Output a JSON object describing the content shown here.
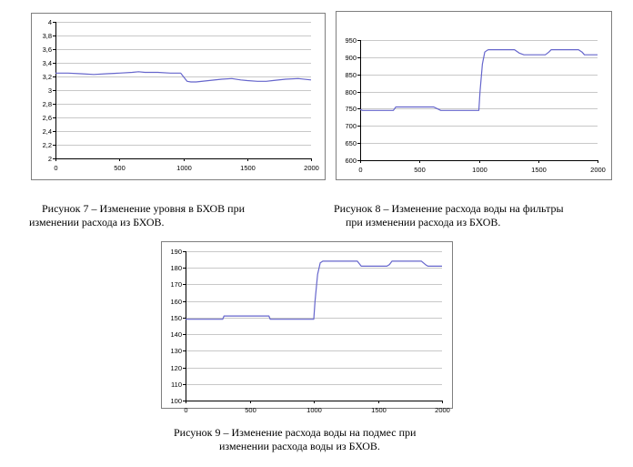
{
  "chart_data": [
    {
      "type": "line",
      "title": "",
      "xlabel": "",
      "ylabel": "",
      "xlim": [
        0,
        2000
      ],
      "ylim": [
        2,
        4
      ],
      "x_ticks": [
        "0",
        "500",
        "1000",
        "1500",
        "2000"
      ],
      "y_ticks": [
        "2",
        "2,2",
        "2,4",
        "2,6",
        "2,8",
        "3",
        "3,2",
        "3,4",
        "3,6",
        "3,8",
        "4"
      ],
      "grid": "horizontal",
      "legend": "none",
      "line_color": "#6666cc",
      "series": [
        {
          "x": [
            0,
            100,
            200,
            300,
            400,
            500,
            600,
            650,
            700,
            800,
            900,
            980,
            1000,
            1030,
            1060,
            1100,
            1200,
            1300,
            1380,
            1450,
            1500,
            1580,
            1650,
            1700,
            1800,
            1900,
            2000
          ],
          "y": [
            3.25,
            3.25,
            3.24,
            3.23,
            3.24,
            3.25,
            3.26,
            3.27,
            3.26,
            3.26,
            3.25,
            3.25,
            3.2,
            3.13,
            3.12,
            3.12,
            3.14,
            3.16,
            3.17,
            3.15,
            3.14,
            3.13,
            3.13,
            3.14,
            3.16,
            3.17,
            3.15
          ]
        }
      ]
    },
    {
      "type": "line",
      "title": "",
      "xlabel": "",
      "ylabel": "",
      "xlim": [
        0,
        2000
      ],
      "ylim": [
        600,
        950
      ],
      "x_ticks": [
        "0",
        "500",
        "1000",
        "1500",
        "2000"
      ],
      "y_ticks": [
        "600",
        "650",
        "700",
        "750",
        "800",
        "850",
        "900",
        "950"
      ],
      "grid": "horizontal",
      "legend": "none",
      "line_color": "#6666cc",
      "series": [
        {
          "x": [
            0,
            20,
            280,
            300,
            620,
            650,
            680,
            1000,
            1010,
            1030,
            1050,
            1070,
            1080,
            1300,
            1340,
            1380,
            1560,
            1590,
            1610,
            1840,
            1870,
            1890,
            2000
          ],
          "y": [
            748,
            745,
            745,
            755,
            755,
            750,
            745,
            745,
            800,
            880,
            915,
            920,
            922,
            922,
            912,
            907,
            907,
            915,
            922,
            922,
            915,
            907,
            907
          ]
        }
      ]
    },
    {
      "type": "line",
      "title": "",
      "xlabel": "",
      "ylabel": "",
      "xlim": [
        0,
        2000
      ],
      "ylim": [
        100,
        190
      ],
      "x_ticks": [
        "0",
        "500",
        "1000",
        "1500",
        "2000"
      ],
      "y_ticks": [
        "100",
        "110",
        "120",
        "130",
        "140",
        "150",
        "160",
        "170",
        "180",
        "190"
      ],
      "grid": "horizontal",
      "legend": "none",
      "line_color": "#6666cc",
      "series": [
        {
          "x": [
            0,
            290,
            300,
            650,
            660,
            1000,
            1010,
            1030,
            1050,
            1070,
            1080,
            1340,
            1370,
            1570,
            1590,
            1610,
            1840,
            1870,
            1890,
            2000
          ],
          "y": [
            149,
            149,
            151,
            151,
            149,
            149,
            160,
            176,
            183,
            184,
            184,
            184,
            181,
            181,
            182,
            184,
            184,
            182,
            181,
            181
          ]
        }
      ]
    }
  ],
  "captions": {
    "fig7": [
      "Рисунок 7 – Изменение уровня в БХОВ при",
      "изменении расхода из БХОВ."
    ],
    "fig8": [
      "Рисунок 8 – Изменение расхода воды на фильтры",
      "при изменении расхода из БХОВ."
    ],
    "fig9": [
      "Рисунок 9 – Изменение расхода воды на подмес при",
      "изменении расхода воды из БХОВ."
    ]
  }
}
